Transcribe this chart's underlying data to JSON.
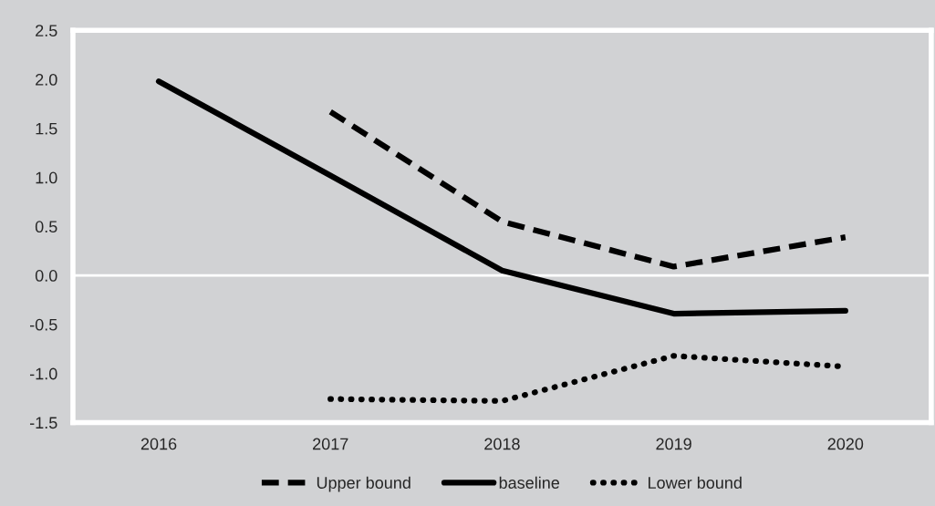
{
  "chart_data": {
    "type": "line",
    "categories": [
      "2016",
      "2017",
      "2018",
      "2019",
      "2020"
    ],
    "series": [
      {
        "name": "Upper bound",
        "color": "#000000",
        "line_style": "dashed",
        "values": [
          null,
          1.67,
          0.55,
          0.09,
          0.39
        ]
      },
      {
        "name": "baseline",
        "color": "#000000",
        "line_style": "solid",
        "values": [
          1.98,
          1.02,
          0.05,
          -0.39,
          -0.36
        ]
      },
      {
        "name": "Lower bound",
        "color": "#000000",
        "line_style": "dotted",
        "values": [
          null,
          -1.26,
          -1.28,
          -0.82,
          -0.93
        ]
      }
    ],
    "ylim": [
      -1.5,
      2.5
    ],
    "yticks": [
      {
        "value": -1.5,
        "label": "-1.5"
      },
      {
        "value": -1.0,
        "label": "-1.0"
      },
      {
        "value": -0.5,
        "label": "-0.5"
      },
      {
        "value": 0.0,
        "label": "0.0"
      },
      {
        "value": 0.5,
        "label": "0.5"
      },
      {
        "value": 1.0,
        "label": "1.0"
      },
      {
        "value": 1.5,
        "label": "1.5"
      },
      {
        "value": 2.0,
        "label": "2.0"
      },
      {
        "value": 2.5,
        "label": "2.5"
      }
    ],
    "ref_lines": [
      {
        "axis": "y",
        "value": 0,
        "color": "#ffffff"
      }
    ],
    "grid": false,
    "legend": "bottom",
    "marker": "none"
  }
}
